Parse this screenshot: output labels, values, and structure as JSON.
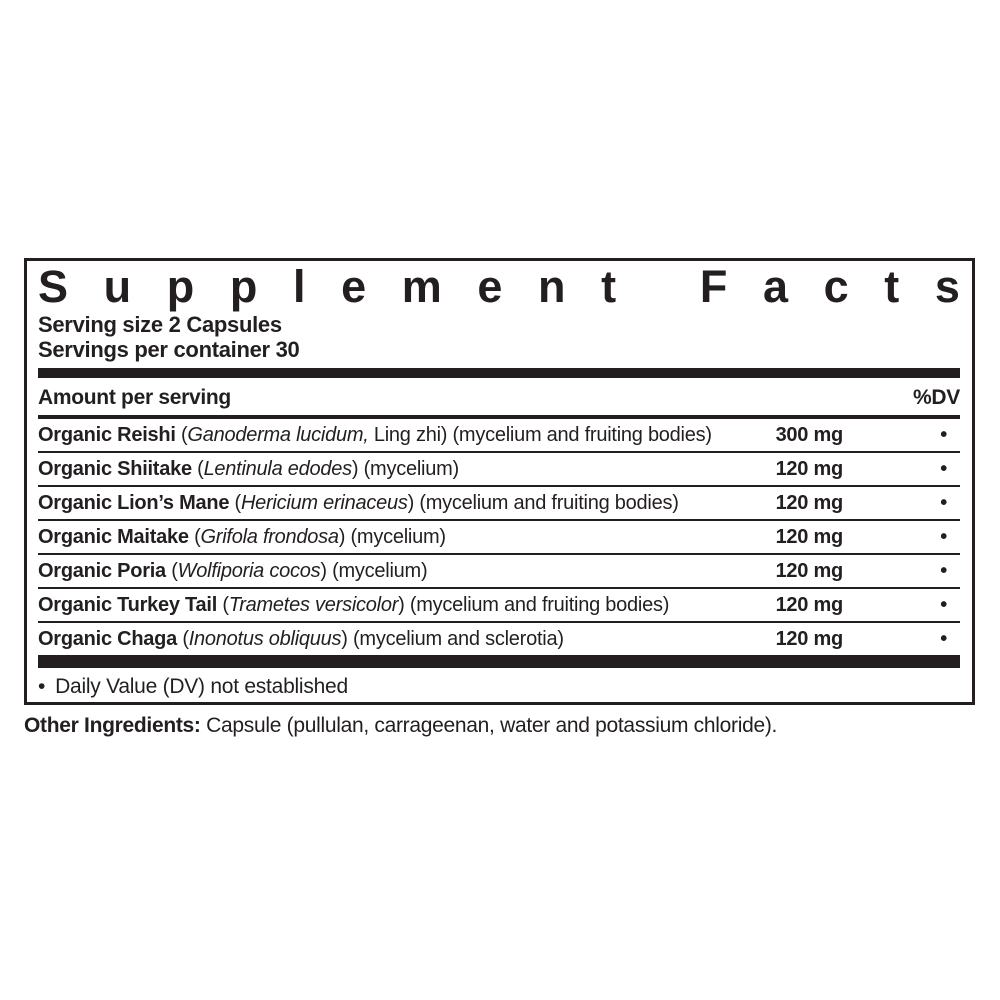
{
  "panel": {
    "title": "Supplement Facts",
    "serving_size": "Serving size 2 Capsules",
    "servings_per_container": "Servings per container 30",
    "columns": {
      "amount_label": "Amount per serving",
      "dv_label": "%DV"
    },
    "rows": [
      {
        "name_parts": [
          {
            "text": "Organic Reishi ",
            "style": "bold"
          },
          {
            "text": "(",
            "style": "regular"
          },
          {
            "text": "Ganoderma lucidum,",
            "style": "italic"
          },
          {
            "text": " Ling zhi) (mycelium and fruiting bodies)",
            "style": "regular"
          }
        ],
        "amount": "300 mg",
        "dv": "•"
      },
      {
        "name_parts": [
          {
            "text": "Organic Shiitake ",
            "style": "bold"
          },
          {
            "text": "(",
            "style": "regular"
          },
          {
            "text": "Lentinula edodes",
            "style": "italic"
          },
          {
            "text": ") (mycelium)",
            "style": "regular"
          }
        ],
        "amount": "120 mg",
        "dv": "•"
      },
      {
        "name_parts": [
          {
            "text": "Organic Lion’s Mane ",
            "style": "bold"
          },
          {
            "text": "(",
            "style": "regular"
          },
          {
            "text": "Hericium erinaceus",
            "style": "italic"
          },
          {
            "text": ") (mycelium and fruiting bodies)",
            "style": "regular"
          }
        ],
        "amount": "120 mg",
        "dv": "•"
      },
      {
        "name_parts": [
          {
            "text": "Organic Maitake ",
            "style": "bold"
          },
          {
            "text": "(",
            "style": "regular"
          },
          {
            "text": "Grifola frondosa",
            "style": "italic"
          },
          {
            "text": ") (mycelium)",
            "style": "regular"
          }
        ],
        "amount": "120 mg",
        "dv": "•"
      },
      {
        "name_parts": [
          {
            "text": "Organic Poria ",
            "style": "bold"
          },
          {
            "text": "(",
            "style": "regular"
          },
          {
            "text": "Wolfiporia cocos",
            "style": "italic"
          },
          {
            "text": ") (mycelium)",
            "style": "regular"
          }
        ],
        "amount": "120 mg",
        "dv": "•"
      },
      {
        "name_parts": [
          {
            "text": "Organic Turkey Tail ",
            "style": "bold"
          },
          {
            "text": "(",
            "style": "regular"
          },
          {
            "text": "Trametes versicolor",
            "style": "italic"
          },
          {
            "text": ") (mycelium and fruiting bodies)",
            "style": "regular"
          }
        ],
        "amount": "120 mg",
        "dv": "•"
      },
      {
        "name_parts": [
          {
            "text": "Organic Chaga ",
            "style": "bold"
          },
          {
            "text": "(",
            "style": "regular"
          },
          {
            "text": "Inonotus obliquus",
            "style": "italic"
          },
          {
            "text": ") (mycelium and sclerotia)",
            "style": "regular"
          }
        ],
        "amount": "120 mg",
        "dv": "•"
      }
    ],
    "footnote_bullet": "•",
    "footnote": "Daily Value (DV) not established"
  },
  "other_ingredients": {
    "label": "Other Ingredients: ",
    "text": "Capsule (pullulan, carrageenan, water and potassium chloride)."
  },
  "colors": {
    "text": "#231f20",
    "background": "#ffffff"
  }
}
